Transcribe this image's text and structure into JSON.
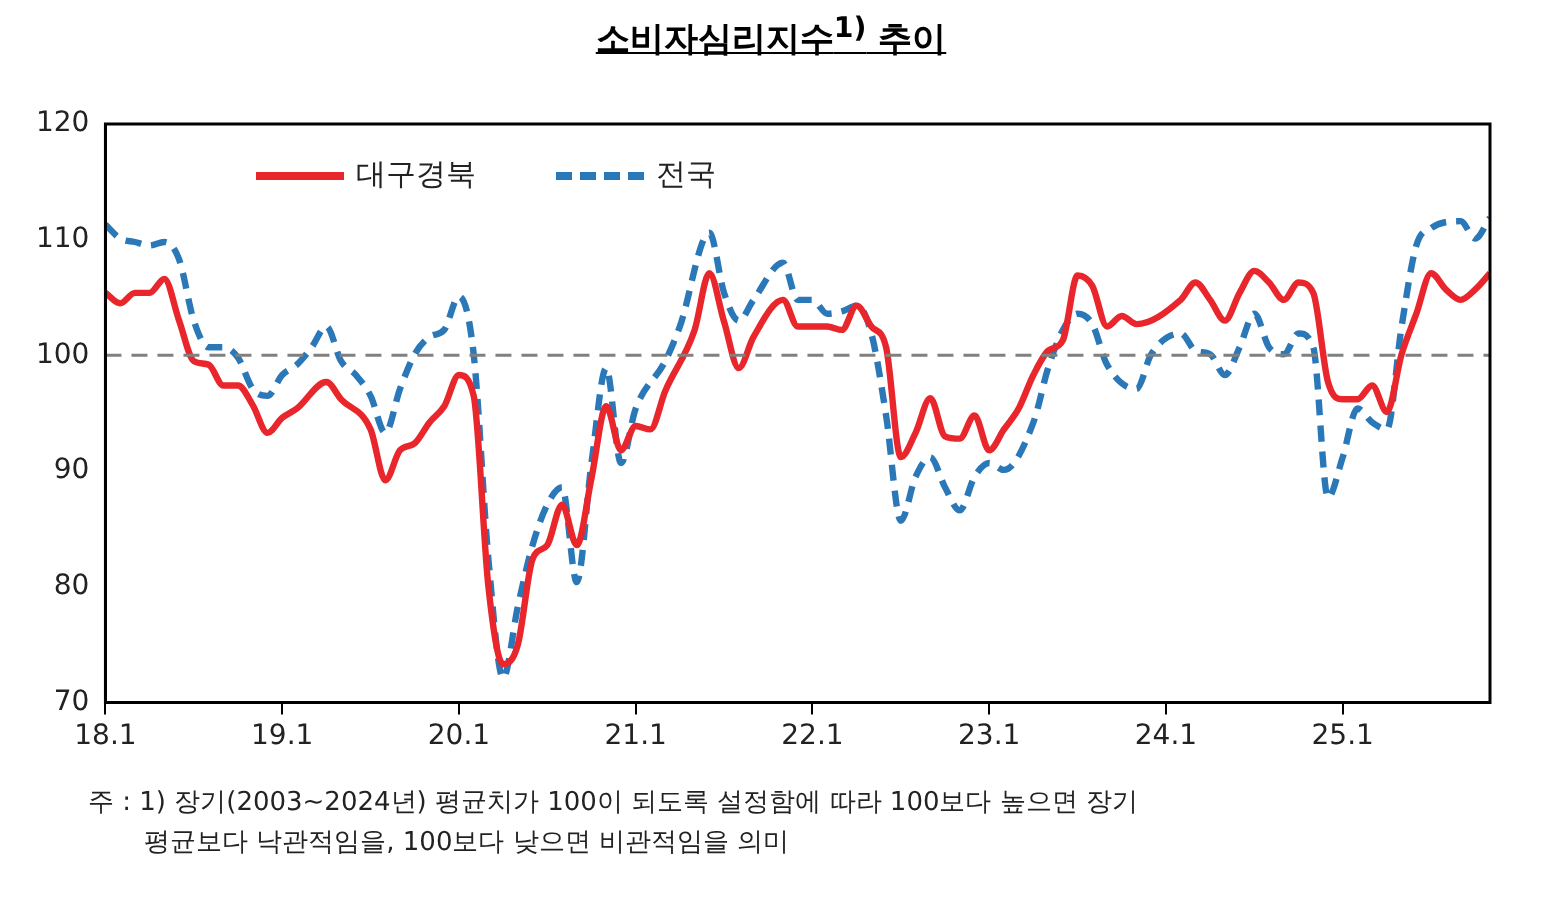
{
  "chart_data": {
    "type": "line",
    "title": "소비자심리지수$^{1)}$ 추이",
    "xlim": [
      "2018-01",
      "2025-11"
    ],
    "xticks": [
      {
        "value": "2018-01",
        "label": "18.1"
      },
      {
        "value": "2019-01",
        "label": "19.1"
      },
      {
        "value": "2020-01",
        "label": "20.1"
      },
      {
        "value": "2021-01",
        "label": "21.1"
      },
      {
        "value": "2022-01",
        "label": "22.1"
      },
      {
        "value": "2023-01",
        "label": "23.1"
      },
      {
        "value": "2024-01",
        "label": "24.1"
      },
      {
        "value": "2025-01",
        "label": "25.1"
      }
    ],
    "ylim": [
      70,
      120
    ],
    "yticks": [
      70,
      80,
      90,
      100,
      110,
      120
    ],
    "grid": false,
    "legend": "top left",
    "ref_lines": [
      {
        "axis": "y",
        "value": 100,
        "color": "#808080",
        "line_style": "dashed"
      }
    ],
    "series": [
      {
        "name": "대구경북",
        "color": "#e8262b",
        "line_style": "solid",
        "x": [
          "2018-01",
          "2018-02",
          "2018-03",
          "2018-04",
          "2018-05",
          "2018-06",
          "2018-07",
          "2018-08",
          "2018-09",
          "2018-10",
          "2018-11",
          "2018-12",
          "2019-01",
          "2019-02",
          "2019-04",
          "2019-05",
          "2019-07",
          "2019-08",
          "2019-09",
          "2019-10",
          "2019-11",
          "2019-12",
          "2020-01",
          "2020-02",
          "2020-03",
          "2020-04",
          "2020-05",
          "2020-06",
          "2020-07",
          "2020-08",
          "2020-09",
          "2020-10",
          "2020-11",
          "2020-12",
          "2021-01",
          "2021-02",
          "2021-03",
          "2021-05",
          "2021-06",
          "2021-07",
          "2021-08",
          "2021-09",
          "2021-11",
          "2021-12",
          "2022-02",
          "2022-03",
          "2022-04",
          "2022-05",
          "2022-06",
          "2022-07",
          "2022-08",
          "2022-09",
          "2022-10",
          "2022-11",
          "2022-12",
          "2023-01",
          "2023-02",
          "2023-03",
          "2023-04",
          "2023-05",
          "2023-06",
          "2023-07",
          "2023-08",
          "2023-09",
          "2023-10",
          "2023-11",
          "2024-02",
          "2024-03",
          "2024-04",
          "2024-05",
          "2024-06",
          "2024-07",
          "2024-08",
          "2024-09",
          "2024-10",
          "2024-11",
          "2024-12",
          "2025-01",
          "2025-02",
          "2025-03",
          "2025-04",
          "2025-05",
          "2025-06",
          "2025-07",
          "2025-08",
          "2025-09",
          "2025-10",
          "2025-11"
        ],
        "values": [
          105.4,
          104.5,
          105.4,
          105.4,
          106.6,
          103,
          99.5,
          99.2,
          97.4,
          97.4,
          95.7,
          93.3,
          94.6,
          95.4,
          97.7,
          96.2,
          93.6,
          89.2,
          91.8,
          92.4,
          94.2,
          95.6,
          98.3,
          96.5,
          80,
          73.3,
          75,
          82.4,
          83.6,
          87.1,
          83.6,
          89.4,
          95.6,
          91.8,
          93.9,
          93.6,
          96.9,
          102.2,
          107.1,
          102.9,
          98.9,
          101.6,
          104.8,
          102.5,
          102.5,
          102.2,
          104.3,
          102.5,
          100.7,
          91.2,
          93.3,
          96.3,
          93,
          92.8,
          94.8,
          91.8,
          93.6,
          95.4,
          98.3,
          100.4,
          101.3,
          106.9,
          106,
          102.5,
          103.4,
          102.7,
          104.8,
          106.3,
          104.8,
          103,
          105.4,
          107.3,
          106.3,
          104.8,
          106.3,
          105.4,
          97.7,
          96.2,
          96.2,
          97.4,
          95.1,
          100.1,
          103.6,
          107.1,
          105.7,
          104.8,
          105.7,
          107.1
        ]
      },
      {
        "name": "전국",
        "color": "#2a78b8",
        "line_style": "dashed",
        "x": [
          "2018-01",
          "2018-02",
          "2018-03",
          "2018-04",
          "2018-05",
          "2018-06",
          "2018-07",
          "2018-08",
          "2018-09",
          "2018-10",
          "2018-11",
          "2018-12",
          "2019-01",
          "2019-02",
          "2019-03",
          "2019-04",
          "2019-05",
          "2019-06",
          "2019-07",
          "2019-08",
          "2019-09",
          "2019-10",
          "2019-11",
          "2019-12",
          "2020-01",
          "2020-02",
          "2020-03",
          "2020-04",
          "2020-05",
          "2020-06",
          "2020-07",
          "2020-08",
          "2020-09",
          "2020-10",
          "2020-11",
          "2020-12",
          "2021-01",
          "2021-03",
          "2021-04",
          "2021-06",
          "2021-07",
          "2021-08",
          "2021-09",
          "2021-11",
          "2021-12",
          "2022-01",
          "2022-02",
          "2022-03",
          "2022-04",
          "2022-05",
          "2022-06",
          "2022-07",
          "2022-08",
          "2022-09",
          "2022-10",
          "2022-11",
          "2022-12",
          "2023-01",
          "2023-02",
          "2023-04",
          "2023-05",
          "2023-06",
          "2023-07",
          "2023-08",
          "2023-09",
          "2023-11",
          "2023-12",
          "2024-02",
          "2024-03",
          "2024-04",
          "2024-05",
          "2024-06",
          "2024-07",
          "2024-08",
          "2024-09",
          "2024-10",
          "2024-11",
          "2024-12",
          "2025-01",
          "2025-02",
          "2025-03",
          "2025-04",
          "2025-05",
          "2025-06",
          "2025-07",
          "2025-09",
          "2025-10",
          "2025-11"
        ],
        "values": [
          111.3,
          110.1,
          109.8,
          109.5,
          109.8,
          108.3,
          103,
          100.7,
          100.7,
          99.8,
          97.1,
          96.5,
          98.3,
          99.2,
          100.7,
          102.5,
          99.5,
          98.3,
          96.5,
          93.3,
          97.1,
          100.1,
          101.6,
          102.2,
          105.1,
          100.1,
          82.4,
          72.1,
          78.3,
          83.6,
          87.1,
          88.6,
          80.4,
          90.7,
          98.9,
          90.7,
          95.4,
          99.5,
          102.5,
          110.6,
          105.4,
          103,
          104.8,
          108,
          104.8,
          104.8,
          103.6,
          103.8,
          104.3,
          101.9,
          94.8,
          85.7,
          89.5,
          91.2,
          88.6,
          86.6,
          89.5,
          90.7,
          90.1,
          94.2,
          98.9,
          102.2,
          103.6,
          102.7,
          99.2,
          97.1,
          100.1,
          101.9,
          100.4,
          100.1,
          98.3,
          100.7,
          103.6,
          100.7,
          100.1,
          101.9,
          100.7,
          87.7,
          91.2,
          95.4,
          94.2,
          93.6,
          102.5,
          109.5,
          111,
          111.6,
          110.1,
          111.9
        ]
      }
    ],
    "annotations": [
      "주 : 1) 장기(2003~2024년) 평균치가 100이 되도록 설정함에 따라 100보다 높으면 장기",
      "평균보다 낙관적임을, 100보다 낮으면 비관적임을 의미"
    ]
  }
}
